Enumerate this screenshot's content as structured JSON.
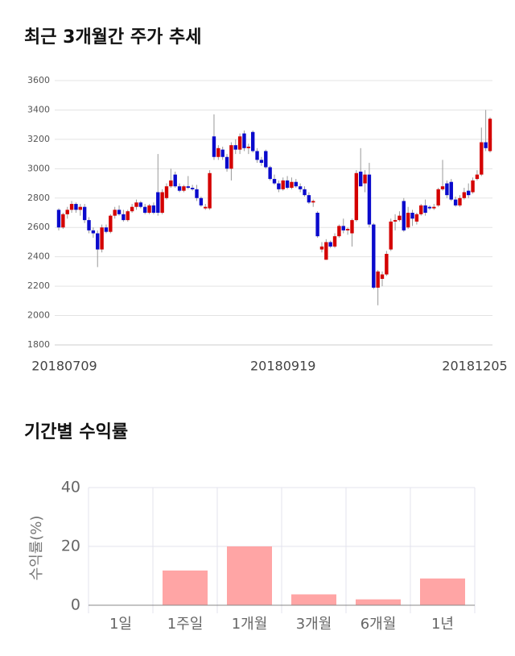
{
  "chart_data": [
    {
      "type": "candlestick",
      "title": "최근 3개월간 주가 추세",
      "categories": [
        "20180709",
        null,
        null,
        null,
        null,
        null,
        null,
        null,
        null,
        null,
        null,
        null,
        null,
        null,
        null,
        null,
        null,
        null,
        null,
        null,
        null,
        null,
        null,
        null,
        null,
        null,
        null,
        null,
        null,
        null,
        null,
        null,
        null,
        null,
        null,
        null,
        null,
        null,
        null,
        null,
        null,
        null,
        null,
        null,
        null,
        null,
        null,
        null,
        null,
        null,
        null,
        null,
        "20180919",
        null,
        null,
        null,
        null,
        null,
        null,
        null,
        null,
        null,
        null,
        null,
        null,
        null,
        null,
        null,
        null,
        null,
        null,
        null,
        null,
        null,
        null,
        null,
        null,
        null,
        null,
        null,
        null,
        null,
        null,
        null,
        null,
        null,
        null,
        null,
        null,
        null,
        null,
        null,
        null,
        null,
        null,
        null,
        null,
        null,
        null,
        null,
        "20181205"
      ],
      "ohlc": [
        [
          2720,
          2730,
          2580,
          2600
        ],
        [
          2600,
          2700,
          2590,
          2690
        ],
        [
          2690,
          2740,
          2660,
          2720
        ],
        [
          2720,
          2780,
          2700,
          2760
        ],
        [
          2760,
          2770,
          2700,
          2720
        ],
        [
          2720,
          2760,
          2680,
          2740
        ],
        [
          2740,
          2760,
          2630,
          2650
        ],
        [
          2650,
          2670,
          2560,
          2580
        ],
        [
          2580,
          2600,
          2530,
          2560
        ],
        [
          2560,
          2580,
          2330,
          2450
        ],
        [
          2450,
          2620,
          2430,
          2600
        ],
        [
          2600,
          2620,
          2560,
          2570
        ],
        [
          2570,
          2690,
          2560,
          2680
        ],
        [
          2680,
          2740,
          2660,
          2720
        ],
        [
          2720,
          2750,
          2680,
          2690
        ],
        [
          2690,
          2720,
          2640,
          2650
        ],
        [
          2650,
          2720,
          2640,
          2710
        ],
        [
          2710,
          2760,
          2700,
          2740
        ],
        [
          2740,
          2790,
          2720,
          2770
        ],
        [
          2770,
          2780,
          2730,
          2740
        ],
        [
          2740,
          2760,
          2690,
          2700
        ],
        [
          2700,
          2760,
          2690,
          2750
        ],
        [
          2750,
          2770,
          2690,
          2700
        ],
        [
          2840,
          3100,
          2680,
          2700
        ],
        [
          2700,
          2860,
          2690,
          2840
        ],
        [
          2800,
          2900,
          2790,
          2880
        ],
        [
          2880,
          3000,
          2870,
          2920
        ],
        [
          2960,
          2980,
          2870,
          2880
        ],
        [
          2880,
          2900,
          2840,
          2850
        ],
        [
          2850,
          2890,
          2840,
          2880
        ],
        [
          2880,
          2950,
          2860,
          2870
        ],
        [
          2870,
          2890,
          2850,
          2860
        ],
        [
          2860,
          2890,
          2780,
          2800
        ],
        [
          2800,
          2810,
          2740,
          2750
        ],
        [
          2730,
          2760,
          2720,
          2740
        ],
        [
          2730,
          2990,
          2720,
          2970
        ],
        [
          3220,
          3370,
          3060,
          3080
        ],
        [
          3080,
          3160,
          3060,
          3140
        ],
        [
          3130,
          3150,
          3060,
          3080
        ],
        [
          3080,
          3100,
          2980,
          3000
        ],
        [
          3000,
          3180,
          2920,
          3160
        ],
        [
          3160,
          3200,
          3100,
          3130
        ],
        [
          3130,
          3240,
          3100,
          3220
        ],
        [
          3240,
          3260,
          3120,
          3140
        ],
        [
          3140,
          3170,
          3100,
          3150
        ],
        [
          3250,
          3260,
          3110,
          3120
        ],
        [
          3120,
          3140,
          3040,
          3060
        ],
        [
          3060,
          3080,
          3020,
          3040
        ],
        [
          3120,
          3130,
          3000,
          3010
        ],
        [
          3010,
          3020,
          2920,
          2930
        ],
        [
          2930,
          2960,
          2890,
          2900
        ],
        [
          2900,
          2920,
          2840,
          2860
        ],
        [
          2860,
          2940,
          2850,
          2920
        ],
        [
          2920,
          2950,
          2860,
          2870
        ],
        [
          2870,
          2940,
          2860,
          2910
        ],
        [
          2910,
          2930,
          2870,
          2880
        ],
        [
          2880,
          2900,
          2840,
          2860
        ],
        [
          2860,
          2880,
          2810,
          2820
        ],
        [
          2820,
          2840,
          2760,
          2770
        ],
        [
          2770,
          2790,
          2740,
          2780
        ],
        [
          2700,
          2710,
          2530,
          2540
        ],
        [
          2450,
          2500,
          2430,
          2470
        ],
        [
          2380,
          2520,
          2380,
          2500
        ],
        [
          2500,
          2510,
          2460,
          2470
        ],
        [
          2470,
          2560,
          2460,
          2540
        ],
        [
          2540,
          2620,
          2530,
          2610
        ],
        [
          2610,
          2660,
          2560,
          2580
        ],
        [
          2580,
          2600,
          2550,
          2590
        ],
        [
          2560,
          2660,
          2470,
          2650
        ],
        [
          2650,
          2990,
          2640,
          2970
        ],
        [
          2980,
          3140,
          2880,
          2880
        ],
        [
          2900,
          2990,
          2840,
          2960
        ],
        [
          2960,
          3040,
          2600,
          2620
        ],
        [
          2620,
          2630,
          2180,
          2190
        ],
        [
          2190,
          2310,
          2070,
          2300
        ],
        [
          2250,
          2300,
          2200,
          2280
        ],
        [
          2280,
          2440,
          2270,
          2420
        ],
        [
          2450,
          2660,
          2440,
          2640
        ],
        [
          2640,
          2690,
          2580,
          2650
        ],
        [
          2650,
          2710,
          2640,
          2680
        ],
        [
          2780,
          2800,
          2570,
          2580
        ],
        [
          2600,
          2740,
          2590,
          2700
        ],
        [
          2700,
          2720,
          2610,
          2660
        ],
        [
          2640,
          2700,
          2620,
          2690
        ],
        [
          2690,
          2760,
          2680,
          2750
        ],
        [
          2750,
          2790,
          2680,
          2700
        ],
        [
          2740,
          2750,
          2720,
          2730
        ],
        [
          2730,
          2760,
          2720,
          2740
        ],
        [
          2750,
          2870,
          2740,
          2860
        ],
        [
          2860,
          3060,
          2850,
          2880
        ],
        [
          2900,
          2920,
          2800,
          2820
        ],
        [
          2910,
          2930,
          2780,
          2790
        ],
        [
          2790,
          2810,
          2740,
          2750
        ],
        [
          2750,
          2820,
          2740,
          2800
        ],
        [
          2800,
          2870,
          2790,
          2840
        ],
        [
          2850,
          2900,
          2800,
          2820
        ],
        [
          2840,
          2940,
          2830,
          2920
        ],
        [
          2930,
          2990,
          2920,
          2960
        ],
        [
          2960,
          3280,
          2950,
          3180
        ],
        [
          3180,
          3400,
          3120,
          3140
        ],
        [
          3120,
          3350,
          3110,
          3340
        ]
      ],
      "up_color": "#d40000",
      "down_color": "#0a0acc",
      "ylim": [
        1800,
        3600
      ],
      "yticks": [
        1800,
        2000,
        2200,
        2400,
        2600,
        2800,
        3000,
        3200,
        3400,
        3600
      ],
      "grid": true
    },
    {
      "type": "bar",
      "title": "기간별 수익률",
      "y_label": "수익률(%)",
      "categories": [
        "1일",
        "1주일",
        "1개월",
        "3개월",
        "6개월",
        "1년"
      ],
      "values": [
        0,
        11.8,
        20,
        3.7,
        2,
        9.1
      ],
      "color": "#ffa5a5",
      "ylim": [
        0,
        40
      ],
      "yticks": [
        0,
        20,
        40
      ],
      "grid": true
    }
  ]
}
